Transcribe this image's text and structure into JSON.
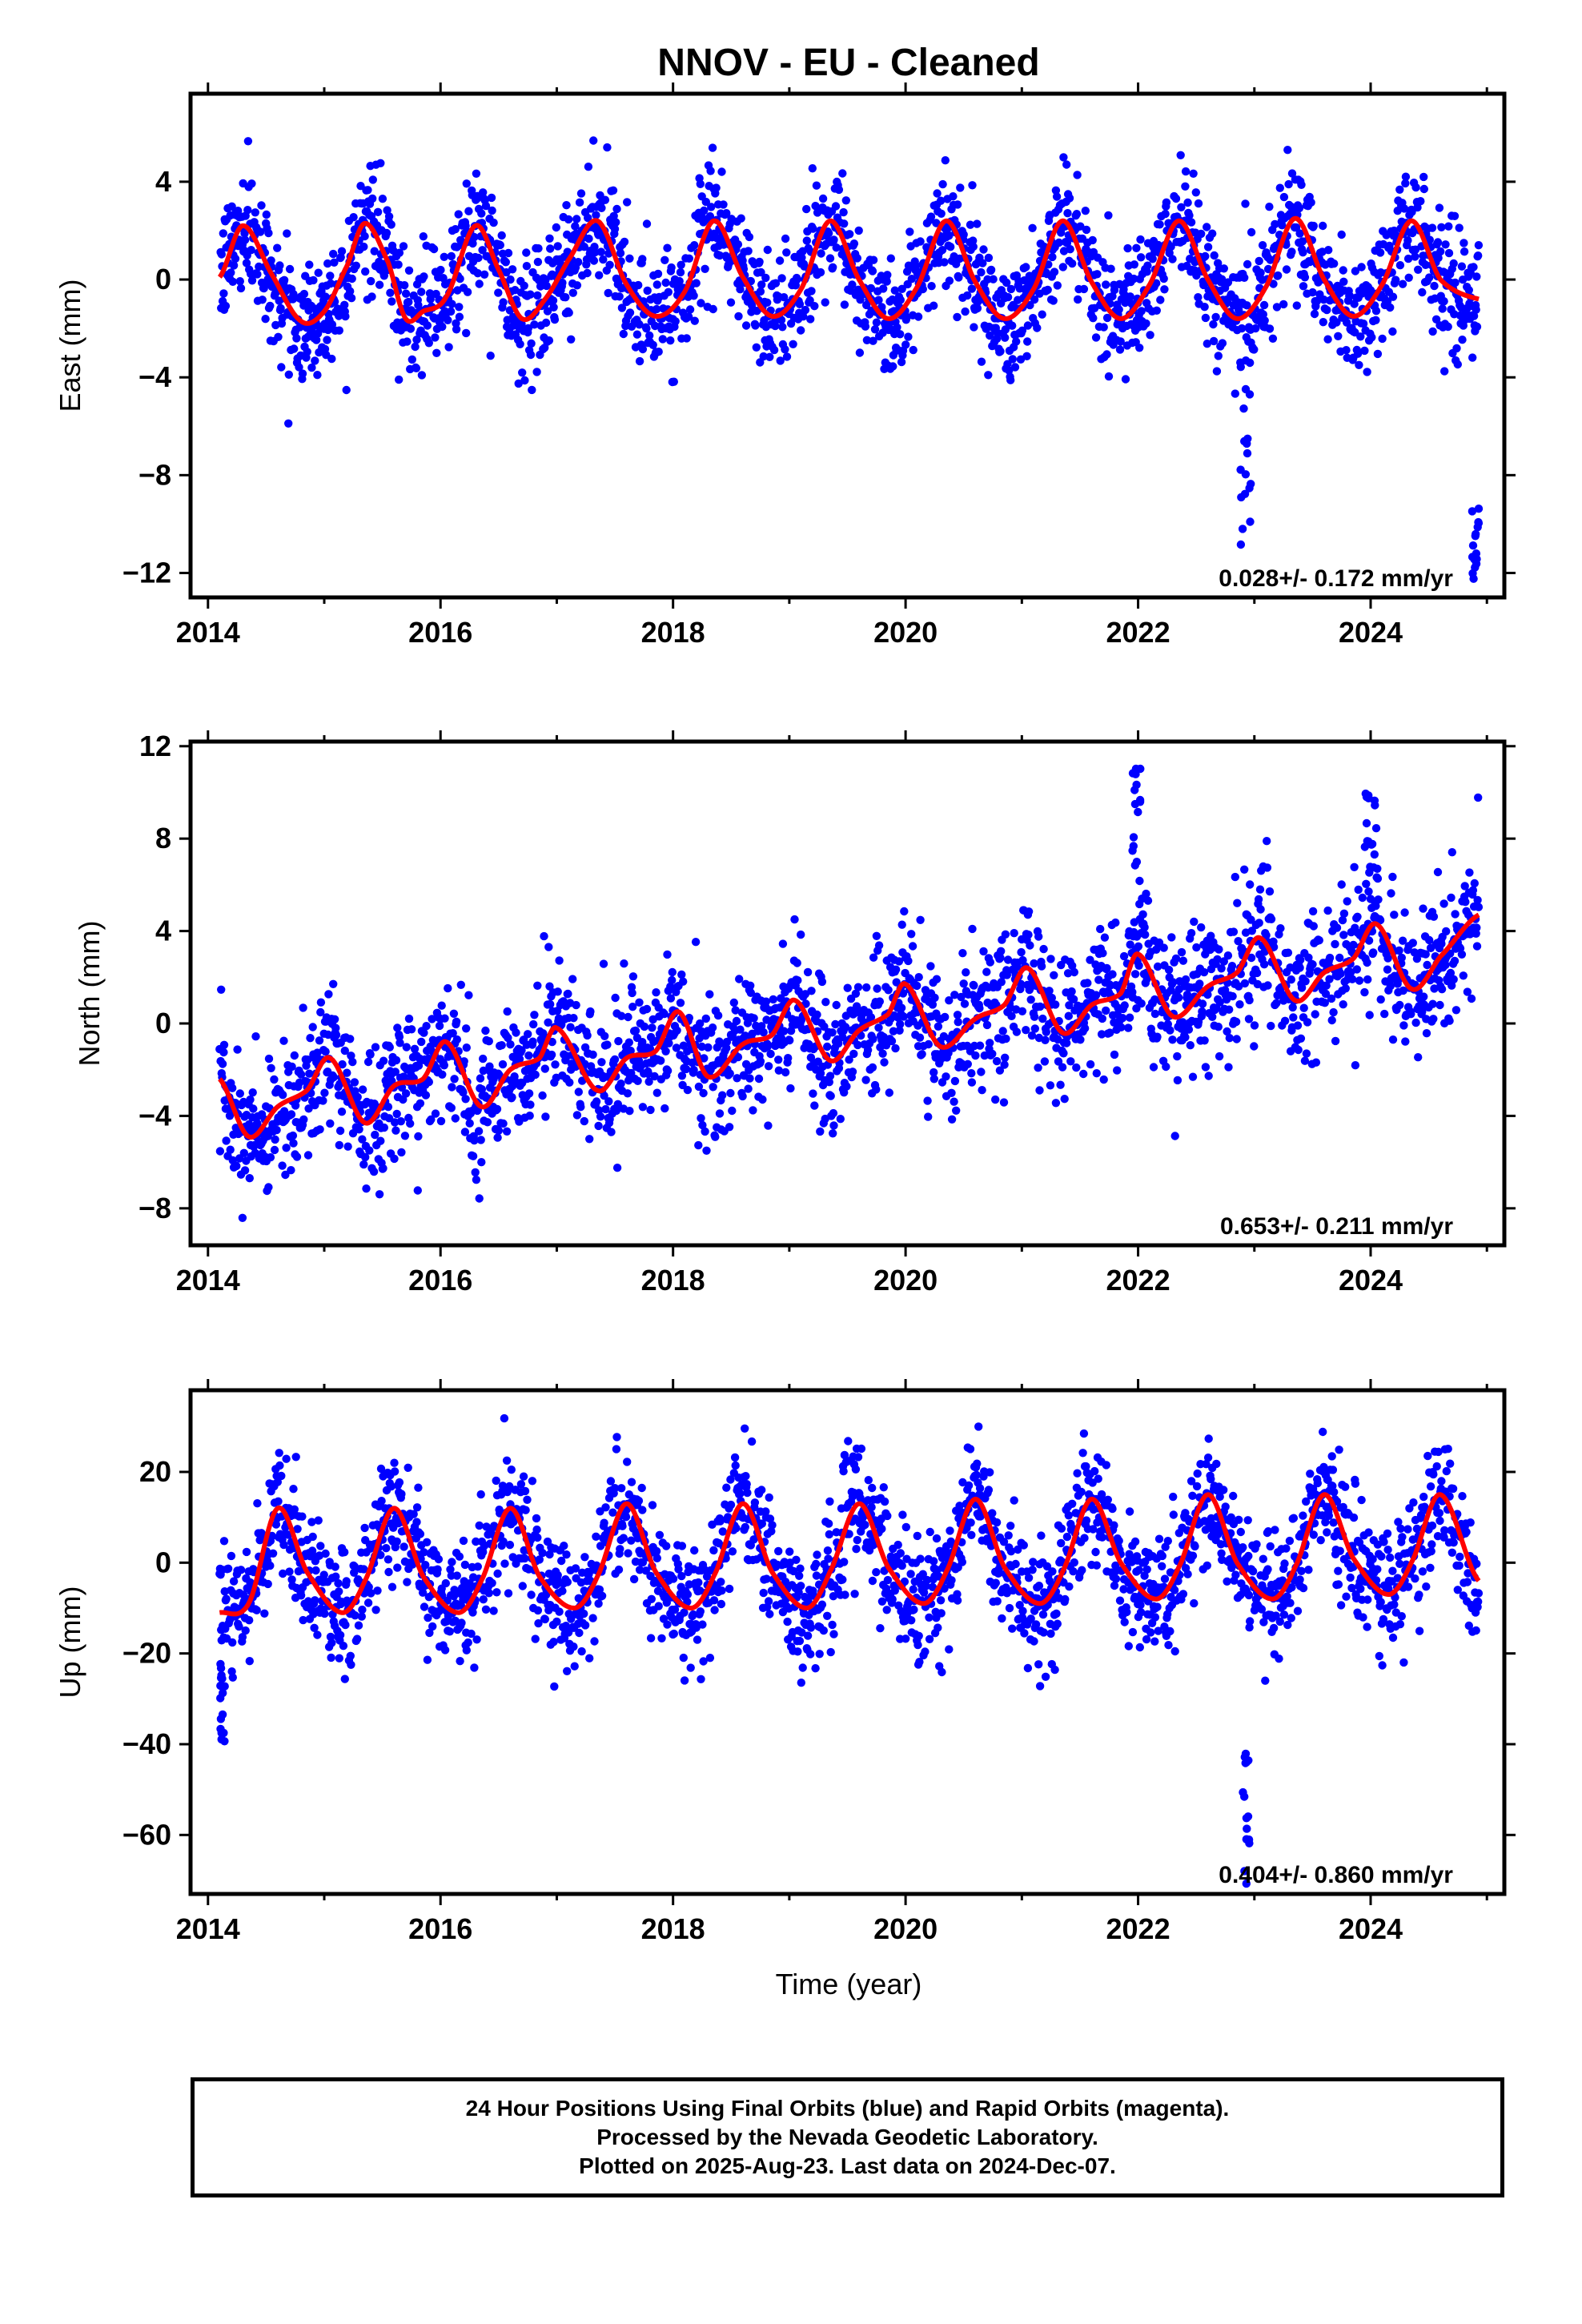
{
  "title": "NNOV  - EU - Cleaned",
  "colors": {
    "points": "#0000ff",
    "fit": "#ff0000",
    "frame": "#000000"
  },
  "x_label": "Time (year)",
  "caption_lines": [
    "24 Hour Positions Using Final Orbits (blue) and Rapid Orbits (magenta).",
    "Processed by the Nevada Geodetic Laboratory.",
    "Plotted on 2025-Aug-23. Last data on 2024-Dec-07."
  ],
  "chart_data": [
    {
      "type": "scatter",
      "component": "East",
      "ylabel": "East (mm)",
      "xlim": [
        2013.85,
        2025.15
      ],
      "ylim": [
        -13.0,
        7.6
      ],
      "xticks": [
        2014,
        2016,
        2018,
        2020,
        2022,
        2024
      ],
      "xtick_labels": [
        "2014",
        "2016",
        "2018",
        "2020",
        "2022",
        "2024"
      ],
      "yticks": [
        4,
        0,
        -4,
        -8,
        -12
      ],
      "ytick_labels": [
        "4",
        "0",
        "−4",
        "−8",
        "−12"
      ],
      "rate_label": "0.028+/- 0.172 mm/yr",
      "data_start": 2014.1,
      "data_end": 2024.93,
      "fit": {
        "name": "",
        "x": [
          2014.1,
          2014.3,
          2014.55,
          2014.8,
          2015.0,
          2015.2,
          2015.35,
          2015.55,
          2015.7,
          2015.85,
          2016.05,
          2016.3,
          2016.5,
          2016.7,
          2016.9,
          2017.1,
          2017.35,
          2017.6,
          2017.85,
          2018.1,
          2018.35,
          2018.6,
          2018.85,
          2019.1,
          2019.35,
          2019.6,
          2019.85,
          2020.1,
          2020.35,
          2020.6,
          2020.85,
          2021.1,
          2021.35,
          2021.6,
          2021.85,
          2022.1,
          2022.35,
          2022.6,
          2022.85,
          2023.1,
          2023.35,
          2023.6,
          2023.85,
          2024.1,
          2024.35,
          2024.6,
          2024.93
        ],
        "y": [
          0.1,
          2.2,
          0.2,
          -1.7,
          -1.3,
          0.6,
          2.3,
          0.7,
          -1.6,
          -1.3,
          -0.7,
          2.2,
          0.4,
          -1.6,
          -0.8,
          0.8,
          2.4,
          -0.2,
          -1.5,
          -0.5,
          2.4,
          0.1,
          -1.5,
          -0.4,
          2.4,
          0.0,
          -1.6,
          -0.3,
          2.4,
          -0.1,
          -1.6,
          -0.4,
          2.4,
          -0.1,
          -1.6,
          -0.2,
          2.4,
          0.0,
          -1.6,
          -0.3,
          2.5,
          0.0,
          -1.5,
          -0.2,
          2.4,
          0.0,
          -0.8
        ]
      },
      "series_notes": {
        "scatter_sd": 1.2,
        "outliers": [
          {
            "x_range": [
              2022.88,
              2022.98
            ],
            "y_range": [
              -11.0,
              -4.4
            ]
          },
          {
            "x_range": [
              2024.87,
              2024.93
            ],
            "y_range": [
              -12.6,
              -7.8
            ]
          }
        ]
      }
    },
    {
      "type": "scatter",
      "component": "North",
      "ylabel": "North (mm)",
      "xlim": [
        2013.85,
        2025.15
      ],
      "ylim": [
        -9.6,
        12.2
      ],
      "xticks": [
        2014,
        2016,
        2018,
        2020,
        2022,
        2024
      ],
      "xtick_labels": [
        "2014",
        "2016",
        "2018",
        "2020",
        "2022",
        "2024"
      ],
      "yticks": [
        12,
        8,
        4,
        0,
        -4,
        -8
      ],
      "ytick_labels": [
        "12",
        "8",
        "4",
        "0",
        "−4",
        "−8"
      ],
      "rate_label": "0.653+/- 0.211 mm/yr",
      "data_start": 2014.1,
      "data_end": 2024.93,
      "fit": {
        "name": "",
        "x": [
          2014.1,
          2014.35,
          2014.6,
          2014.85,
          2015.05,
          2015.35,
          2015.6,
          2015.85,
          2016.05,
          2016.35,
          2016.6,
          2016.85,
          2017.0,
          2017.35,
          2017.6,
          2017.85,
          2018.05,
          2018.3,
          2018.6,
          2018.85,
          2019.05,
          2019.35,
          2019.6,
          2019.85,
          2020.0,
          2020.3,
          2020.6,
          2020.85,
          2021.05,
          2021.35,
          2021.6,
          2021.85,
          2022.0,
          2022.3,
          2022.6,
          2022.85,
          2023.05,
          2023.35,
          2023.6,
          2023.85,
          2024.05,
          2024.35,
          2024.6,
          2024.93
        ],
        "y": [
          -2.4,
          -4.9,
          -3.6,
          -2.9,
          -1.5,
          -4.3,
          -2.7,
          -2.4,
          -0.8,
          -3.6,
          -2.0,
          -1.5,
          -0.2,
          -2.9,
          -1.5,
          -1.2,
          0.5,
          -2.3,
          -0.9,
          -0.5,
          1.0,
          -1.6,
          -0.3,
          0.4,
          1.7,
          -1.0,
          0.2,
          0.8,
          2.4,
          -0.4,
          0.8,
          1.3,
          3.0,
          0.3,
          1.6,
          2.2,
          3.7,
          1.0,
          2.2,
          2.8,
          4.3,
          1.5,
          2.9,
          4.7
        ]
      },
      "series_notes": {
        "scatter_sd": 1.5,
        "outliers": [
          {
            "x_range": [
              2021.95,
              2022.02
            ],
            "y_range": [
              6.0,
              11.6
            ]
          },
          {
            "x_range": [
              2023.95,
              2024.05
            ],
            "y_range": [
              6.0,
              10.2
            ]
          }
        ]
      }
    },
    {
      "type": "scatter",
      "component": "Up",
      "ylabel": "Up (mm)",
      "xlim": [
        2013.85,
        2025.15
      ],
      "ylim": [
        -73.0,
        38.0
      ],
      "xticks": [
        2014,
        2016,
        2018,
        2020,
        2022,
        2024
      ],
      "xtick_labels": [
        "2014",
        "2016",
        "2018",
        "2020",
        "2022",
        "2024"
      ],
      "yticks": [
        20,
        0,
        -20,
        -40,
        -60
      ],
      "ytick_labels": [
        "20",
        "0",
        "−20",
        "−40",
        "−60"
      ],
      "rate_label": "0.404+/- 0.860 mm/yr",
      "data_start": 2014.1,
      "data_end": 2024.93,
      "fit": {
        "name": "",
        "x": [
          2014.1,
          2014.35,
          2014.6,
          2014.85,
          2015.15,
          2015.35,
          2015.6,
          2015.85,
          2016.15,
          2016.35,
          2016.6,
          2016.85,
          2017.15,
          2017.35,
          2017.6,
          2017.85,
          2018.15,
          2018.35,
          2018.6,
          2018.85,
          2019.15,
          2019.35,
          2019.6,
          2019.85,
          2020.15,
          2020.35,
          2020.6,
          2020.85,
          2021.15,
          2021.35,
          2021.6,
          2021.85,
          2022.15,
          2022.35,
          2022.6,
          2022.85,
          2023.15,
          2023.35,
          2023.6,
          2023.85,
          2024.15,
          2024.35,
          2024.6,
          2024.93
        ],
        "y": [
          -11,
          -9,
          12,
          -2,
          -11,
          -4,
          12,
          -3,
          -11,
          -4,
          12,
          -3,
          -10,
          -3,
          13,
          -2,
          -10,
          -3,
          13,
          -2,
          -10,
          -2,
          13,
          -1,
          -9,
          -2,
          14,
          -1,
          -9,
          -2,
          14,
          0,
          -8,
          -1,
          15,
          0,
          -8,
          -1,
          15,
          1,
          -7,
          0,
          15,
          -4
        ]
      },
      "series_notes": {
        "scatter_sd": 6.5,
        "outliers": [
          {
            "x_range": [
              2014.1,
              2014.15
            ],
            "y_range": [
              -40,
              -22
            ]
          },
          {
            "x_range": [
              2022.9,
              2022.97
            ],
            "y_range": [
              -71,
              -34
            ]
          }
        ]
      }
    }
  ]
}
